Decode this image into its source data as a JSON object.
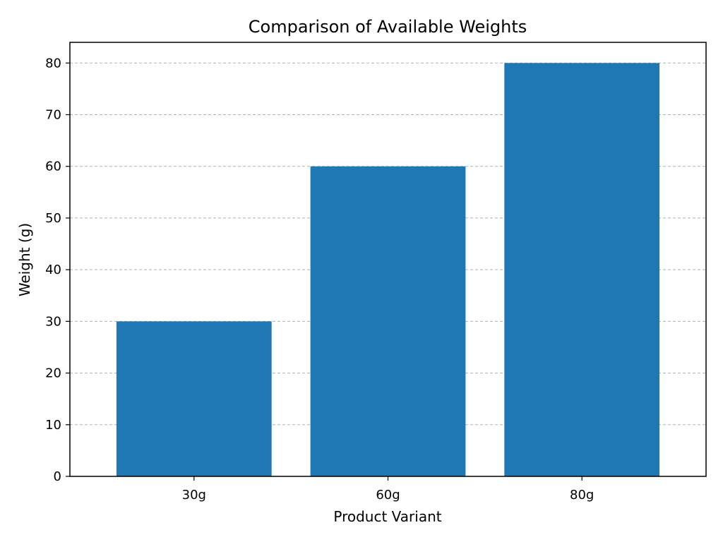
{
  "chart_data": {
    "type": "bar",
    "title": "Comparison of Available Weights",
    "xlabel": "Product Variant",
    "ylabel": "Weight (g)",
    "categories": [
      "30g",
      "60g",
      "80g"
    ],
    "values": [
      30,
      60,
      80
    ],
    "ylim": [
      0,
      84
    ],
    "yticks": [
      0,
      10,
      20,
      30,
      40,
      50,
      60,
      70,
      80
    ],
    "grid": true,
    "bar_color": "#1f77b4"
  }
}
